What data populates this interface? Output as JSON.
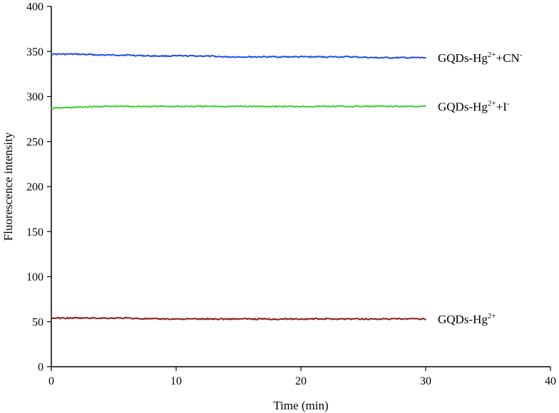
{
  "chart_data": {
    "type": "line",
    "title": "",
    "xlabel": "Time (min)",
    "ylabel": "Fluorescence intensity",
    "xlim": [
      0,
      40
    ],
    "ylim": [
      0,
      400
    ],
    "xticks": [
      "0",
      "10",
      "20",
      "30",
      "40"
    ],
    "yticks": [
      "0",
      "50",
      "100",
      "150",
      "200",
      "250",
      "300",
      "350",
      "400"
    ],
    "grid": false,
    "series": [
      {
        "name_parts": [
          "GQDs-Hg",
          "2+",
          "+CN",
          "-"
        ],
        "color": "#1f4fe0",
        "x": [
          0,
          2,
          4,
          6,
          8,
          10,
          12,
          14,
          16,
          18,
          20,
          22,
          24,
          26,
          28,
          30
        ],
        "values": [
          347,
          347,
          346,
          346,
          345,
          345,
          345,
          344,
          344,
          344,
          344,
          344,
          344,
          343,
          343,
          343
        ]
      },
      {
        "name_parts": [
          "GQDs-Hg",
          "2+",
          "+I",
          "-"
        ],
        "color": "#3ccf2f",
        "x": [
          0,
          2,
          4,
          6,
          8,
          10,
          12,
          14,
          16,
          18,
          20,
          22,
          24,
          26,
          28,
          30
        ],
        "values": [
          287,
          288,
          289,
          289,
          289,
          289,
          289,
          289,
          289,
          289,
          289,
          289,
          289,
          289,
          289,
          289
        ]
      },
      {
        "name_parts": [
          "GQDs-Hg",
          "2+"
        ],
        "color": "#8b1a1a",
        "x": [
          0,
          2,
          4,
          6,
          8,
          10,
          12,
          14,
          16,
          18,
          20,
          22,
          24,
          26,
          28,
          30
        ],
        "values": [
          54,
          54,
          54,
          54,
          53,
          53,
          53,
          53,
          53,
          53,
          53,
          53,
          53,
          53,
          53,
          53
        ]
      }
    ]
  }
}
